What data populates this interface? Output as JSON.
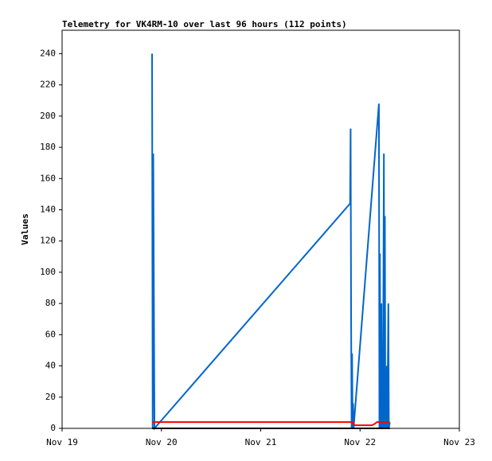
{
  "chart_data": {
    "type": "line",
    "title": "Telemetry for VK4RM-10 over last 96 hours (112 points)",
    "y_label": "Values",
    "xlim": [
      19,
      23
    ],
    "xticks": [
      {
        "value": 19,
        "label": "Nov 19"
      },
      {
        "value": 20,
        "label": "Nov 20"
      },
      {
        "value": 21,
        "label": "Nov 21"
      },
      {
        "value": 22,
        "label": "Nov 22"
      },
      {
        "value": 23,
        "label": "Nov 23"
      }
    ],
    "ylim": [
      0,
      255
    ],
    "yticks": [
      0,
      20,
      40,
      60,
      80,
      100,
      120,
      140,
      160,
      180,
      200,
      220,
      240
    ],
    "series": [
      {
        "color": "#0066cc",
        "x": [
          19.906,
          19.912,
          19.918,
          19.93,
          21.9,
          21.905,
          21.91,
          21.915,
          21.92,
          21.925,
          21.93,
          21.935,
          22.19,
          22.195,
          22.2,
          22.205,
          22.215,
          22.22,
          22.225,
          22.23,
          22.24,
          22.245,
          22.25,
          22.255,
          22.26,
          22.265,
          22.27,
          22.275,
          22.285,
          22.29,
          22.3
        ],
        "values": [
          240,
          0,
          176,
          0,
          144,
          192,
          72,
          0,
          48,
          0,
          16,
          0,
          208,
          0,
          112,
          0,
          80,
          0,
          40,
          0,
          176,
          0,
          136,
          0,
          32,
          0,
          40,
          0,
          80,
          0,
          4
        ]
      },
      {
        "color": "#ff0000",
        "x": [
          19.906,
          21.93,
          21.94,
          22.12,
          22.15,
          22.17,
          22.3
        ],
        "values": [
          4,
          4,
          2,
          2,
          3,
          4,
          4
        ]
      },
      {
        "color": "#000000",
        "x": [
          19.906,
          22.3
        ],
        "values": [
          0,
          0
        ]
      }
    ]
  }
}
